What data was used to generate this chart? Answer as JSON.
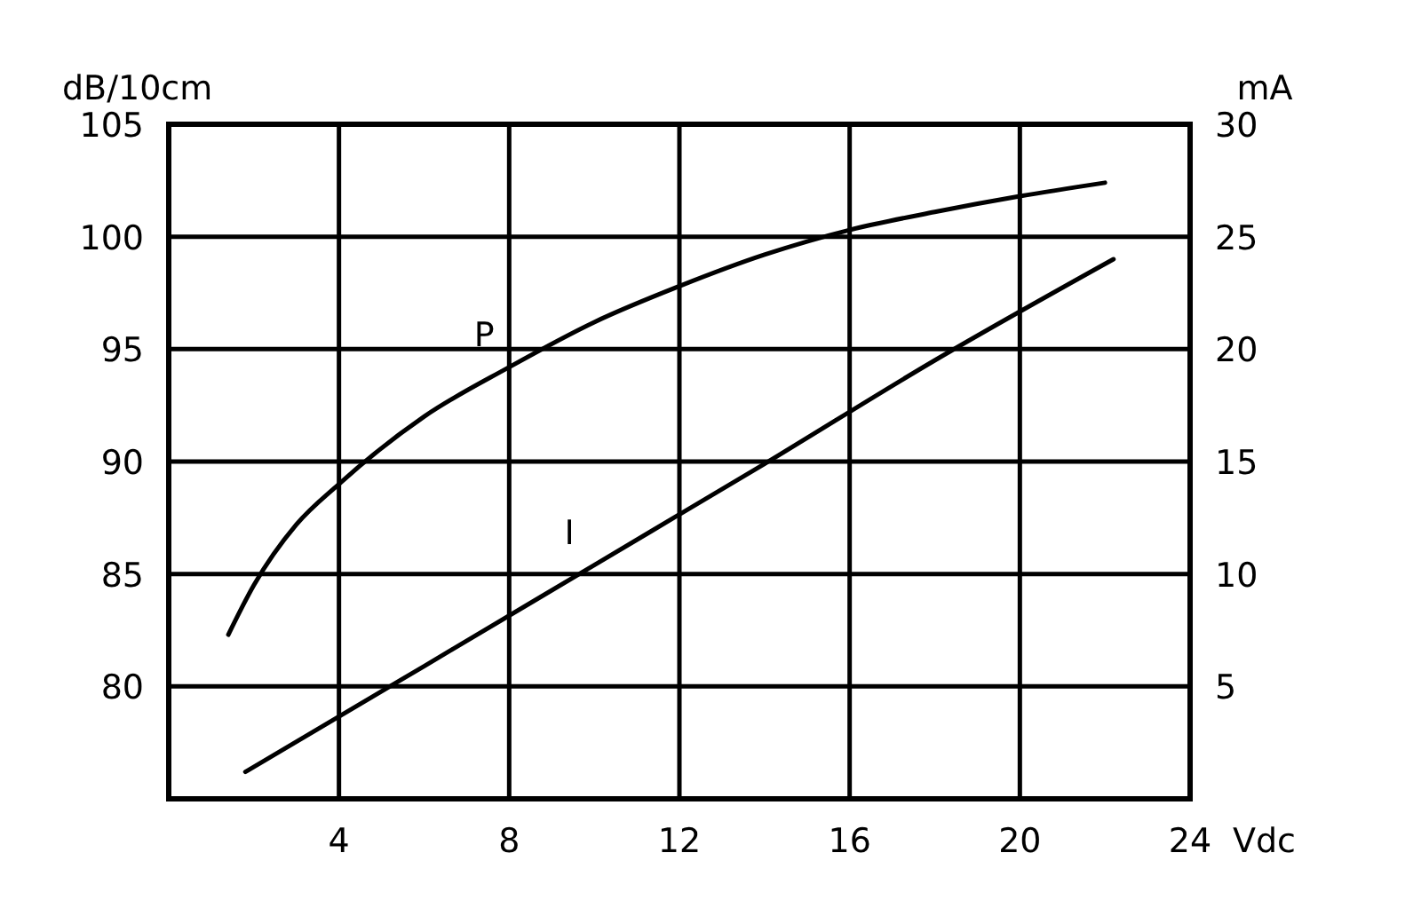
{
  "chart_data": {
    "type": "line",
    "xlabel": "Vdc",
    "ylabel": "dB/10cm",
    "y2label": "mA",
    "xlim": [
      0,
      24
    ],
    "xticks": [
      4,
      8,
      12,
      16,
      20,
      24
    ],
    "ylim": [
      75,
      105
    ],
    "yticks": [
      80,
      85,
      90,
      95,
      100,
      105
    ],
    "y2lim": [
      0,
      30
    ],
    "y2ticks": [
      5,
      10,
      15,
      20,
      25,
      30
    ],
    "grid": true,
    "marker": "none",
    "line_style": "solid",
    "series": [
      {
        "name": "P",
        "color": "#000000",
        "x": [
          1.4,
          2,
          3,
          4,
          6,
          8,
          10,
          12,
          14,
          16,
          18,
          20,
          22
        ],
        "values": [
          82.3,
          84.5,
          87.2,
          89,
          92,
          94.2,
          96.2,
          97.8,
          99.2,
          100.3,
          101.1,
          101.8,
          102.4
        ]
      },
      {
        "name": "I",
        "color": "#000000",
        "axis": "y2",
        "x": [
          1.8,
          6,
          10,
          14,
          18,
          22.2
        ],
        "values": [
          1.2,
          5.9,
          10.4,
          14.9,
          19.5,
          24
        ]
      }
    ]
  }
}
